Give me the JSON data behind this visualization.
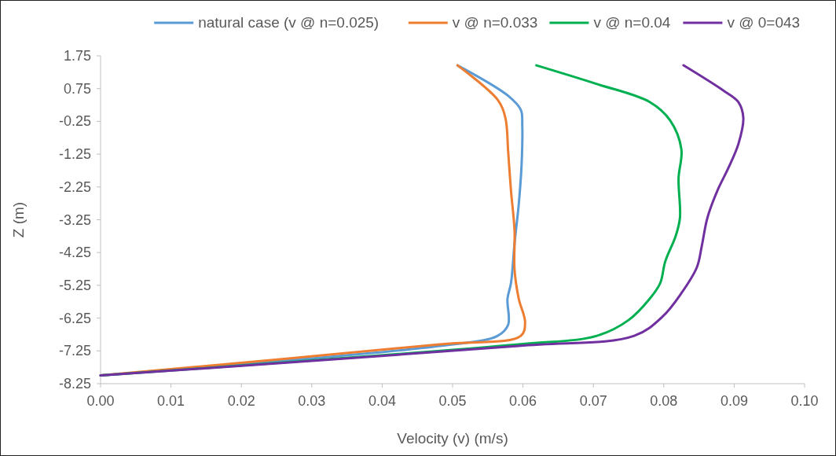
{
  "chart_data": {
    "type": "line",
    "xlabel": "Velocity (v) (m/s)",
    "ylabel": "Z (m)",
    "legend": "top",
    "grid": false,
    "marker": "none",
    "line_style": "solid",
    "xlim": [
      0,
      0.1
    ],
    "xticks": [
      {
        "value": 0,
        "label": "0.00"
      },
      {
        "value": 0.01,
        "label": "0.01"
      },
      {
        "value": 0.02,
        "label": "0.02"
      },
      {
        "value": 0.03,
        "label": "0.03"
      },
      {
        "value": 0.04,
        "label": "0.04"
      },
      {
        "value": 0.05,
        "label": "0.05"
      },
      {
        "value": 0.06,
        "label": "0.06"
      },
      {
        "value": 0.07,
        "label": "0.07"
      },
      {
        "value": 0.08,
        "label": "0.08"
      },
      {
        "value": 0.09,
        "label": "0.09"
      },
      {
        "value": 0.1,
        "label": "0.10"
      }
    ],
    "ylim": [
      -8.25,
      1.75
    ],
    "yticks": [
      1.75,
      0.75,
      -0.25,
      -1.25,
      -2.25,
      -3.25,
      -4.25,
      -5.25,
      -6.25,
      -7.25,
      -8.25
    ],
    "series": [
      {
        "name": "natural case (v @ n=0.025)",
        "color": "#5b9bd5",
        "x": [
          0.0507,
          0.0579,
          0.0597,
          0.0599,
          0.0598,
          0.0594,
          0.0588,
          0.0583,
          0.0578,
          0.0579,
          0.0564,
          0.0482,
          0
        ],
        "values": [
          1.46,
          0.53,
          0.1,
          -0.38,
          -1.58,
          -2.78,
          -3.98,
          -5.18,
          -5.66,
          -6.45,
          -6.79,
          -7.1,
          -8
        ]
      },
      {
        "name": "v @ n=0.033",
        "color": "#ed7d31",
        "x": [
          0.0507,
          0.0564,
          0.0575,
          0.0579,
          0.0583,
          0.0588,
          0.0588,
          0.0594,
          0.0603,
          0.0597,
          0.0482,
          0
        ],
        "values": [
          1.46,
          0.41,
          -0.14,
          -1.18,
          -2.37,
          -3.57,
          -4.77,
          -5.66,
          -6.38,
          -6.79,
          -7.05,
          -8
        ]
      },
      {
        "name": "v @ n=0.04",
        "color": "#00b050",
        "x": [
          0.0619,
          0.0705,
          0.078,
          0.0809,
          0.0825,
          0.0821,
          0.0823,
          0.0817,
          0.0802,
          0.0795,
          0.078,
          0.075,
          0.0705,
          0.0594,
          0
        ],
        "values": [
          1.46,
          0.89,
          0.34,
          -0.22,
          -1.1,
          -1.99,
          -3.19,
          -3.74,
          -4.53,
          -5.18,
          -5.66,
          -6.31,
          -6.79,
          -7.05,
          -8
        ]
      },
      {
        "name": "v @ 0=043",
        "color": "#7030a0",
        "x": [
          0.0828,
          0.0884,
          0.0906,
          0.0913,
          0.0906,
          0.0892,
          0.0876,
          0.0862,
          0.0854,
          0.0847,
          0.0825,
          0.0798,
          0.0758,
          0.0594,
          0
        ],
        "values": [
          1.46,
          0.7,
          0.34,
          -0.14,
          -0.94,
          -1.66,
          -2.37,
          -3.19,
          -4.05,
          -4.7,
          -5.49,
          -6.21,
          -6.79,
          -7.1,
          -8
        ]
      }
    ]
  }
}
